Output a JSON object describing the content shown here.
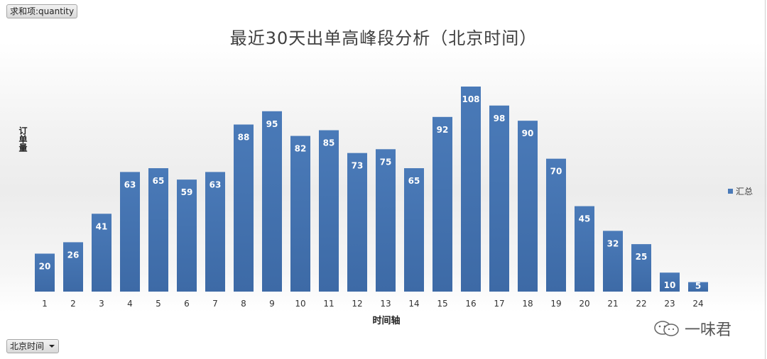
{
  "pivot": {
    "value_field": "求和项:quantity",
    "axis_field": "北京时间"
  },
  "watermark": "一味君",
  "colors": {
    "bar": "#4a7ab8",
    "bar_dark": "#3d6aa6",
    "label": "#ffffff",
    "tick": "#333333"
  },
  "chart_data": {
    "type": "bar",
    "title": "最近30天出单高峰段分析（北京时间）",
    "xlabel": "时间轴",
    "ylabel": "订单量",
    "legend": {
      "position": "right",
      "entries": [
        "汇总"
      ]
    },
    "categories": [
      "1",
      "2",
      "3",
      "4",
      "5",
      "6",
      "7",
      "8",
      "9",
      "10",
      "11",
      "12",
      "13",
      "14",
      "15",
      "16",
      "17",
      "18",
      "19",
      "20",
      "21",
      "22",
      "23",
      "24"
    ],
    "series": [
      {
        "name": "汇总",
        "values": [
          20,
          26,
          41,
          63,
          65,
          59,
          63,
          88,
          95,
          82,
          85,
          73,
          75,
          65,
          92,
          108,
          98,
          90,
          70,
          45,
          32,
          25,
          10,
          5
        ]
      }
    ],
    "data_labels": [
      "20",
      "26",
      "41",
      "63",
      "65",
      "59",
      "63",
      "88",
      "95",
      "82",
      "85",
      "73",
      "75",
      "65",
      "92",
      "108",
      "98",
      "90",
      "70",
      "45",
      "32",
      "25",
      "10",
      "5"
    ],
    "ylim": [
      0,
      108
    ],
    "grid": false
  }
}
